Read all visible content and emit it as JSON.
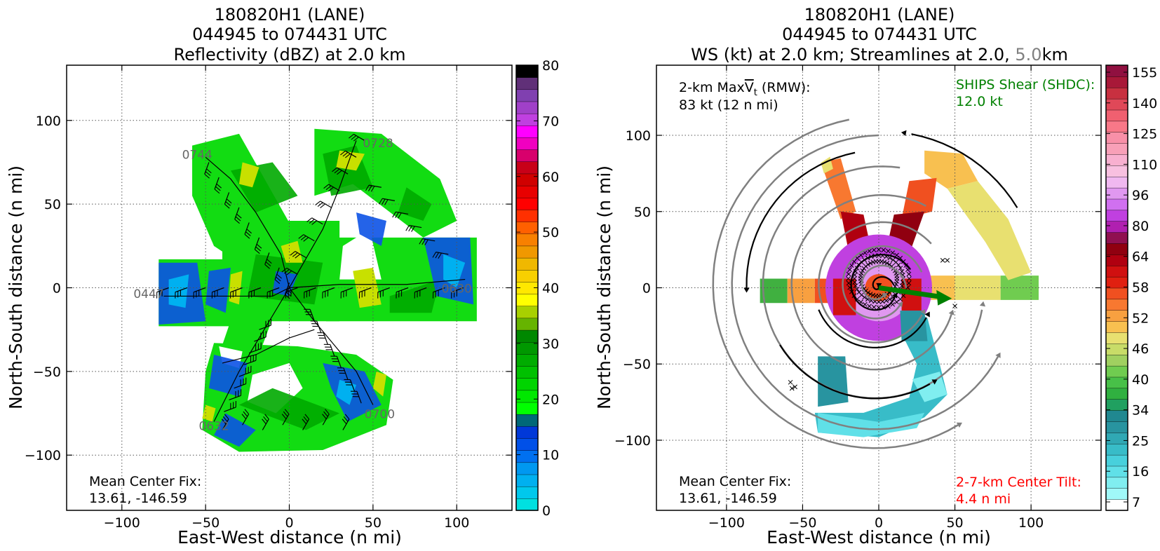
{
  "chart_data": [
    {
      "type": "contour",
      "title_lines": [
        "180820H1 (LANE)",
        "044945 to 074431 UTC",
        "Reflectivity (dBZ) at 2.0 km"
      ],
      "xlabel": "East-West distance (n mi)",
      "ylabel": "North-South distance (n mi)",
      "xlim": [
        -133,
        133
      ],
      "ylim": [
        -133,
        133
      ],
      "xticks": [
        -100,
        -50,
        0,
        50,
        100
      ],
      "yticks": [
        -100,
        -50,
        0,
        50,
        100
      ],
      "xtick_labels": [
        "−100",
        "−50",
        "0",
        "50",
        "100"
      ],
      "ytick_labels": [
        "−100",
        "−50",
        "0",
        "50",
        "100"
      ],
      "grid": true,
      "leg_time_labels": [
        {
          "text": "0744",
          "x": -55,
          "y": 77
        },
        {
          "text": "0728",
          "x": 53,
          "y": 84
        },
        {
          "text": "0447",
          "x": -84,
          "y": -6
        },
        {
          "text": "0630",
          "x": 100,
          "y": -3
        },
        {
          "text": "0632",
          "x": -45,
          "y": -85
        },
        {
          "text": "0700",
          "x": 54,
          "y": -78
        }
      ],
      "annotation": {
        "lines": [
          "Mean Center Fix:",
          "13.61, -146.59"
        ]
      },
      "colorbar": {
        "min": 0,
        "max": 80,
        "tick_labels": [
          "0",
          "10",
          "20",
          "30",
          "40",
          "50",
          "60",
          "70",
          "80"
        ],
        "colors": [
          "#00e0e0",
          "#00c8ec",
          "#00b0f0",
          "#0098f0",
          "#0070f0",
          "#0050e8",
          "#0038d8",
          "#006878",
          "#00ff00",
          "#00e800",
          "#00d400",
          "#00c000",
          "#00ac00",
          "#009800",
          "#008800",
          "#66b400",
          "#a8d000",
          "#ffff00",
          "#ffe800",
          "#f8d000",
          "#f0b800",
          "#f09800",
          "#f88000",
          "#ff6000",
          "#ff3000",
          "#ff0000",
          "#e80000",
          "#d00000",
          "#c80018",
          "#d8006c",
          "#f000c0",
          "#ff00ff",
          "#c040e0",
          "#a040c8",
          "#8040b0",
          "#603078",
          "#000000"
        ]
      }
    },
    {
      "type": "contour",
      "title_lines": [
        "180820H1 (LANE)",
        "044945 to 074431 UTC"
      ],
      "title_line3_parts": [
        "WS (kt) at 2.0 km; Streamlines at 2.0, ",
        "5.0",
        "km"
      ],
      "xlabel": "East-West distance (n mi)",
      "ylabel": "North-South distance (n mi)",
      "xlim": [
        -146,
        146
      ],
      "ylim": [
        -146,
        146
      ],
      "xticks": [
        -100,
        -50,
        0,
        50,
        100
      ],
      "yticks": [
        -100,
        -50,
        0,
        50,
        100
      ],
      "xtick_labels": [
        "−100",
        "−50",
        "0",
        "50",
        "100"
      ],
      "ytick_labels": [
        "−100",
        "−50",
        "0",
        "50",
        "100"
      ],
      "grid": true,
      "annotation_top_left": {
        "line1_prefix": "2-km Max",
        "line1_v": "V",
        "line1_sub": "t",
        "line1_suffix": " (RMW):",
        "line2": "83 kt (12 n mi)"
      },
      "annotation_top_right": {
        "lines": [
          "SHIPS Shear (SHDC):",
          "12.0 kt"
        ],
        "color": "#008000"
      },
      "annotation_bottom_left": {
        "lines": [
          "Mean Center Fix:",
          "13.61, -146.59"
        ]
      },
      "annotation_bottom_right": {
        "lines": [
          "2-7-km Center Tilt:",
          "4.4 n mi"
        ],
        "color": "#ff0000"
      },
      "shear_vector": {
        "x0": 0,
        "y0": 0,
        "x1": 48,
        "y1": -7,
        "color": "#008000"
      },
      "colorbar": {
        "tick_labels": [
          "7",
          "16",
          "25",
          "34",
          "40",
          "46",
          "52",
          "58",
          "64",
          "80",
          "96",
          "110",
          "125",
          "140",
          "155"
        ],
        "colors": [
          "#ffffff",
          "#a0f8f8",
          "#80eef0",
          "#60e0e8",
          "#48d0dc",
          "#38bcc8",
          "#30a8b4",
          "#2894a0",
          "#208890",
          "#20a060",
          "#30b040",
          "#48c048",
          "#70cc50",
          "#a0d060",
          "#c8dc68",
          "#e8e070",
          "#f8c050",
          "#f8a040",
          "#f87830",
          "#f05020",
          "#e02010",
          "#d01010",
          "#b00010",
          "#900010",
          "#901050",
          "#b020b0",
          "#c040e0",
          "#d070f0",
          "#e098f0",
          "#f0b8f0",
          "#f8c0e0",
          "#f8b0d0",
          "#f8a0b8",
          "#f890a8",
          "#f87888",
          "#f06070",
          "#e04858",
          "#c83040",
          "#a81838",
          "#901040"
        ]
      }
    }
  ]
}
